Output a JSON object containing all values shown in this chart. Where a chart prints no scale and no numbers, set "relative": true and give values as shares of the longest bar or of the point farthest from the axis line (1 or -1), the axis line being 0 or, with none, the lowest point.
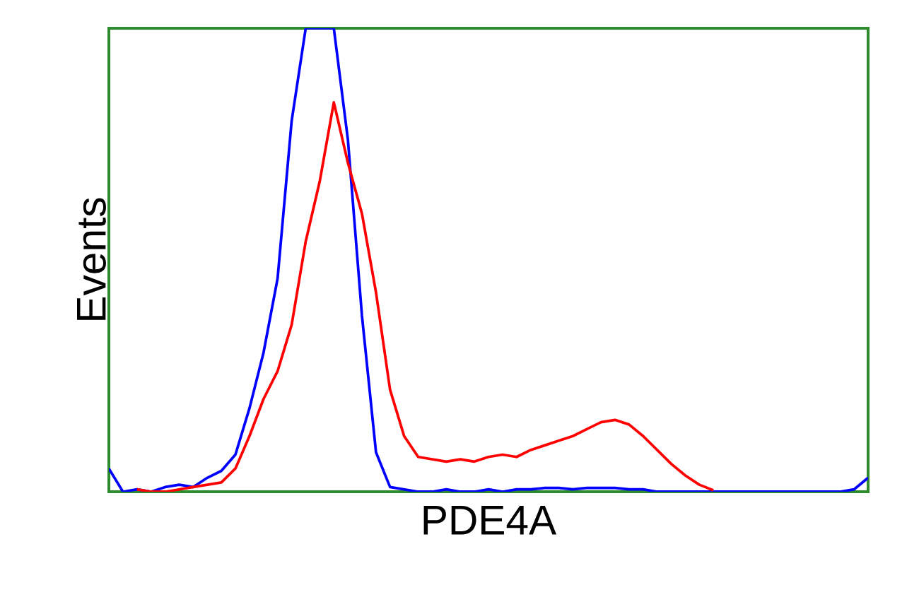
{
  "chart_data": {
    "type": "line",
    "relative": true,
    "xlabel": "PDE4A",
    "ylabel": "Events",
    "marker": "none",
    "line_style": "solid",
    "categories": [
      null,
      null,
      null,
      null,
      null,
      null,
      null,
      null,
      null,
      null,
      null,
      null,
      null,
      null,
      null,
      null,
      null,
      null,
      null,
      null,
      null,
      null,
      null,
      null,
      null,
      null,
      null,
      null,
      null,
      null,
      null,
      null,
      null,
      null,
      null,
      null,
      null,
      null,
      null,
      null,
      null,
      null,
      null,
      null,
      null,
      null,
      null,
      null,
      null,
      null,
      null,
      null,
      null,
      null,
      null
    ],
    "series": [
      {
        "color": "#0000ff",
        "values": [
          0.05,
          0.0,
          0.005,
          0.0,
          0.01,
          0.015,
          0.01,
          0.03,
          0.045,
          0.08,
          0.18,
          0.3,
          0.46,
          0.8,
          1,
          1,
          1,
          0.76,
          0.38,
          0.085,
          0.01,
          0.005,
          0.0,
          0.0,
          0.005,
          0.0,
          0.0,
          0.005,
          0.0,
          0.005,
          0.005,
          0.008,
          0.008,
          0.005,
          0.008,
          0.008,
          0.008,
          0.005,
          0.005,
          0.0,
          0.0,
          0.0,
          0.0,
          0.0,
          0.0,
          0.0,
          0.0,
          0.0,
          0.0,
          0.0,
          0.0,
          0.0,
          0.0,
          0.005,
          0.03
        ]
      },
      {
        "color": "#ff0000",
        "values": [
          null,
          null,
          0.005,
          0.0,
          0.0,
          0.005,
          0.01,
          0.015,
          0.02,
          0.05,
          0.12,
          0.2,
          0.26,
          0.36,
          0.54,
          0.67,
          0.84,
          0.71,
          0.6,
          0.43,
          0.22,
          0.12,
          0.075,
          0.07,
          0.065,
          0.07,
          0.065,
          0.075,
          0.08,
          0.075,
          0.09,
          0.1,
          0.11,
          0.12,
          0.135,
          0.15,
          0.155,
          0.145,
          0.12,
          0.09,
          0.06,
          0.035,
          0.015,
          0.003,
          null,
          null,
          null,
          null,
          null,
          null,
          null,
          null,
          null,
          null,
          null
        ]
      }
    ]
  }
}
